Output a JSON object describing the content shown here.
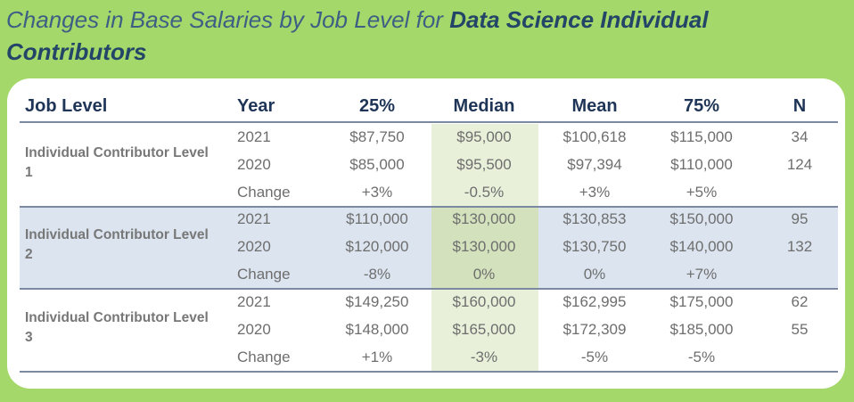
{
  "title": {
    "light": "Changes in Base Salaries by Job Level for ",
    "bold": "Data Science Individual Contributors"
  },
  "colors": {
    "background": "#a5d86a",
    "title": "#2d4f72",
    "median_highlight": "#e8f0da",
    "level2_band": "#dbe4ef"
  },
  "headers": [
    "Job Level",
    "Year",
    "25%",
    "Median",
    "Mean",
    "75%",
    "N"
  ],
  "groups": [
    {
      "level": "Individual Contributor Level 1",
      "rows": [
        {
          "year": "2021",
          "p25": "$87,750",
          "median": "$95,000",
          "mean": "$100,618",
          "p75": "$115,000",
          "n": "34"
        },
        {
          "year": "2020",
          "p25": "$85,000",
          "median": "$95,500",
          "mean": "$97,394",
          "p75": "$110,000",
          "n": "124"
        },
        {
          "year": "Change",
          "p25": "+3%",
          "median": "-0.5%",
          "mean": "+3%",
          "p75": "+5%",
          "n": ""
        }
      ]
    },
    {
      "level": "Individual Contributor Level 2",
      "rows": [
        {
          "year": "2021",
          "p25": "$110,000",
          "median": "$130,000",
          "mean": "$130,853",
          "p75": "$150,000",
          "n": "95"
        },
        {
          "year": "2020",
          "p25": "$120,000",
          "median": "$130,000",
          "mean": "$130,750",
          "p75": "$140,000",
          "n": "132"
        },
        {
          "year": "Change",
          "p25": "-8%",
          "median": "0%",
          "mean": "0%",
          "p75": "+7%",
          "n": ""
        }
      ]
    },
    {
      "level": "Individual Contributor Level 3",
      "rows": [
        {
          "year": "2021",
          "p25": "$149,250",
          "median": "$160,000",
          "mean": "$162,995",
          "p75": "$175,000",
          "n": "62"
        },
        {
          "year": "2020",
          "p25": "$148,000",
          "median": "$165,000",
          "mean": "$172,309",
          "p75": "$185,000",
          "n": "55"
        },
        {
          "year": "Change",
          "p25": "+1%",
          "median": "-3%",
          "mean": "-5%",
          "p75": "-5%",
          "n": ""
        }
      ]
    }
  ]
}
